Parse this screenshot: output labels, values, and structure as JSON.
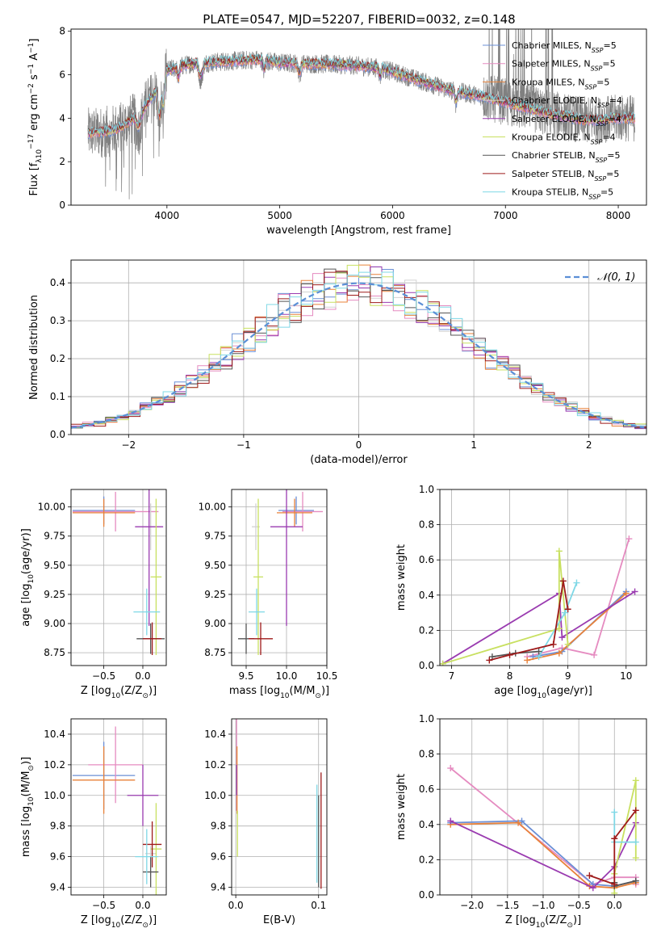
{
  "figure_title": "PLATE=0547, MJD=52207, FIBERID=0032, z=0.148",
  "colors": {
    "chabrier_miles": "#6b8fd6",
    "salpeter_miles": "#e58bc0",
    "kroupa_miles": "#e8823a",
    "chabrier_elodie": "#d2d2d2",
    "salpeter_elodie": "#9a3bb0",
    "kroupa_elodie": "#c8e060",
    "chabrier_stelib": "#555555",
    "salpeter_stelib": "#9e1a1a",
    "kroupa_stelib": "#7fd8e6",
    "data": "#808080",
    "normal": "#5b8fd6"
  },
  "legend_series": [
    {
      "key": "chabrier_miles",
      "imf": "Chabrier",
      "lib": "MILES",
      "n": "5"
    },
    {
      "key": "salpeter_miles",
      "imf": "Salpeter",
      "lib": "MILES",
      "n": "5"
    },
    {
      "key": "kroupa_miles",
      "imf": "Kroupa",
      "lib": "MILES",
      "n": "5"
    },
    {
      "key": "chabrier_elodie",
      "imf": "Chabrier",
      "lib": "ELODIE",
      "n": "4"
    },
    {
      "key": "salpeter_elodie",
      "imf": "Salpeter",
      "lib": "ELODIE",
      "n": "4"
    },
    {
      "key": "kroupa_elodie",
      "imf": "Kroupa",
      "lib": "ELODIE",
      "n": "4"
    },
    {
      "key": "chabrier_stelib",
      "imf": "Chabrier",
      "lib": "STELIB",
      "n": "5"
    },
    {
      "key": "salpeter_stelib",
      "imf": "Salpeter",
      "lib": "STELIB",
      "n": "5"
    },
    {
      "key": "kroupa_stelib",
      "imf": "Kroupa",
      "lib": "STELIB",
      "n": "5"
    }
  ],
  "chart_data": [
    {
      "id": "spectrum",
      "type": "line",
      "xlabel": "wavelength [Angstrom, rest frame]",
      "ylabel_parts": [
        "Flux [f",
        "λ",
        "10",
        "−17",
        " erg cm",
        "−2",
        " s",
        "−1",
        " A",
        "−1",
        "]"
      ],
      "xlim": [
        3150,
        8250
      ],
      "ylim": [
        0,
        8.1
      ],
      "xticks": [
        4000,
        5000,
        6000,
        7000,
        8000
      ],
      "yticks": [
        0,
        2,
        4,
        6,
        8
      ],
      "grid": false,
      "legend_position": "right",
      "continuum": [
        [
          3300,
          3.3
        ],
        [
          3400,
          3.35
        ],
        [
          3500,
          3.4
        ],
        [
          3600,
          3.6
        ],
        [
          3700,
          4.0
        ],
        [
          3800,
          4.5
        ],
        [
          3900,
          5.2
        ],
        [
          4000,
          6.2
        ],
        [
          4200,
          6.5
        ],
        [
          4500,
          6.6
        ],
        [
          4800,
          6.7
        ],
        [
          5000,
          6.55
        ],
        [
          5300,
          6.5
        ],
        [
          5600,
          6.45
        ],
        [
          5900,
          6.3
        ],
        [
          6200,
          5.8
        ],
        [
          6500,
          5.3
        ],
        [
          6800,
          5.0
        ],
        [
          7100,
          4.6
        ],
        [
          7400,
          4.2
        ],
        [
          7700,
          3.9
        ],
        [
          8000,
          4.0
        ]
      ]
    },
    {
      "id": "residuals",
      "type": "line",
      "xlabel": "(data-model)/error",
      "ylabel": "Normed distribution",
      "xlim": [
        -2.5,
        2.5
      ],
      "ylim": [
        0,
        0.46
      ],
      "xticks": [
        -2,
        -1,
        0,
        1,
        2
      ],
      "yticks": [
        0.0,
        0.1,
        0.2,
        0.3,
        0.4
      ],
      "grid": true,
      "legend_position": "top-right",
      "normal_label_parts": [
        "𝒩",
        "(0, 1)"
      ],
      "bin_width": 0.1
    },
    {
      "id": "age_vs_Z",
      "type": "scatter",
      "xlabel_parts": [
        "Z [log",
        "10",
        "(Z/Z",
        "⊙",
        ")]"
      ],
      "ylabel_parts": [
        "age  [log",
        "10",
        "(age/yr)]"
      ],
      "xlim": [
        -0.92,
        0.3
      ],
      "ylim": [
        8.64,
        10.15
      ],
      "xticks": [
        -0.5,
        0.0
      ],
      "yticks": [
        8.75,
        9.0,
        9.25,
        9.5,
        9.75,
        10.0
      ],
      "grid": true,
      "errorbars": [
        {
          "s": "chabrier_miles",
          "x": -0.5,
          "xe": 0.4,
          "y": 9.97,
          "ye": 0.12
        },
        {
          "s": "salpeter_miles",
          "x": -0.35,
          "xe": 0.55,
          "y": 9.96,
          "ye": 0.17
        },
        {
          "s": "kroupa_miles",
          "x": -0.5,
          "xe": 0.4,
          "y": 9.95,
          "ye": 0.12
        },
        {
          "s": "chabrier_elodie",
          "x": 0.1,
          "xe": 0.07,
          "y": 9.83,
          "ye": 0.2
        },
        {
          "s": "salpeter_elodie",
          "x": 0.08,
          "xe": 0.18,
          "y": 9.83,
          "ye": 0.85
        },
        {
          "s": "kroupa_elodie",
          "x": 0.17,
          "xe": 0.07,
          "y": 9.4,
          "ye": 0.67
        },
        {
          "s": "chabrier_stelib",
          "x": 0.1,
          "xe": 0.18,
          "y": 8.87,
          "ye": 0.13
        },
        {
          "s": "salpeter_stelib",
          "x": 0.12,
          "xe": 0.12,
          "y": 8.87,
          "ye": 0.14
        },
        {
          "s": "kroupa_stelib",
          "x": 0.05,
          "xe": 0.17,
          "y": 9.1,
          "ye": 0.2
        }
      ]
    },
    {
      "id": "age_vs_mass",
      "type": "scatter",
      "xlabel_parts": [
        "mass [log",
        "10",
        "(M/M",
        "⊙",
        ")]"
      ],
      "ylabel": "",
      "xlim": [
        9.32,
        10.5
      ],
      "ylim": [
        8.64,
        10.15
      ],
      "xticks": [
        9.5,
        10.0,
        10.5
      ],
      "yticks": [
        8.75,
        9.0,
        9.25,
        9.5,
        9.75,
        10.0
      ],
      "grid": true,
      "errorbars": [
        {
          "s": "chabrier_miles",
          "x": 10.12,
          "xe": 0.22,
          "y": 9.97,
          "ye": 0.12
        },
        {
          "s": "salpeter_miles",
          "x": 10.2,
          "xe": 0.25,
          "y": 9.96,
          "ye": 0.17
        },
        {
          "s": "kroupa_miles",
          "x": 10.1,
          "xe": 0.22,
          "y": 9.95,
          "ye": 0.12
        },
        {
          "s": "chabrier_elodie",
          "x": 9.62,
          "xe": 0.05,
          "y": 9.83,
          "ye": 0.2
        },
        {
          "s": "salpeter_elodie",
          "x": 10.0,
          "xe": 0.2,
          "y": 9.83,
          "ye": 0.85
        },
        {
          "s": "kroupa_elodie",
          "x": 9.65,
          "xe": 0.06,
          "y": 9.4,
          "ye": 0.67
        },
        {
          "s": "chabrier_stelib",
          "x": 9.5,
          "xe": 0.1,
          "y": 8.87,
          "ye": 0.13
        },
        {
          "s": "salpeter_stelib",
          "x": 9.68,
          "xe": 0.15,
          "y": 8.87,
          "ye": 0.14
        },
        {
          "s": "kroupa_stelib",
          "x": 9.63,
          "xe": 0.1,
          "y": 9.1,
          "ye": 0.2
        }
      ]
    },
    {
      "id": "weight_vs_age",
      "type": "line",
      "xlabel_parts": [
        "age  [log",
        "10",
        "(age/yr)]"
      ],
      "ylabel": "mass weight",
      "xlim": [
        6.8,
        10.35
      ],
      "ylim": [
        0,
        1.0
      ],
      "xticks": [
        7,
        8,
        9,
        10
      ],
      "yticks": [
        0.0,
        0.2,
        0.4,
        0.6,
        0.8,
        1.0
      ],
      "grid": true,
      "lines": [
        {
          "s": "salpeter_miles",
          "x": [
            8.3,
            8.9,
            9.45,
            10.05
          ],
          "y": [
            0.05,
            0.1,
            0.06,
            0.72
          ]
        },
        {
          "s": "chabrier_miles",
          "x": [
            8.4,
            8.9,
            10.0
          ],
          "y": [
            0.05,
            0.08,
            0.42
          ]
        },
        {
          "s": "kroupa_miles",
          "x": [
            8.3,
            8.85,
            10.0
          ],
          "y": [
            0.03,
            0.07,
            0.41
          ]
        },
        {
          "s": "salpeter_elodie",
          "x": [
            6.85,
            8.85,
            8.9,
            10.15
          ],
          "y": [
            0.01,
            0.41,
            0.16,
            0.42
          ]
        },
        {
          "s": "kroupa_elodie",
          "x": [
            6.85,
            8.85,
            8.85,
            9.0
          ],
          "y": [
            0.01,
            0.21,
            0.65,
            0.12
          ]
        },
        {
          "s": "kroupa_stelib",
          "x": [
            8.5,
            8.95,
            9.15
          ],
          "y": [
            0.05,
            0.3,
            0.47
          ]
        },
        {
          "s": "chabrier_stelib",
          "x": [
            7.7,
            8.1,
            8.5
          ],
          "y": [
            0.05,
            0.07,
            0.08
          ]
        },
        {
          "s": "salpeter_stelib",
          "x": [
            7.65,
            8.0,
            8.75,
            8.92,
            9.0
          ],
          "y": [
            0.03,
            0.06,
            0.12,
            0.48,
            0.32
          ]
        }
      ]
    },
    {
      "id": "mass_vs_Z",
      "type": "scatter",
      "xlabel_parts": [
        "Z [log",
        "10",
        "(Z/Z",
        "⊙",
        ")]"
      ],
      "ylabel_parts": [
        "mass [log",
        "10",
        "(M/M",
        "⊙",
        ")]"
      ],
      "xlim": [
        -0.92,
        0.3
      ],
      "ylim": [
        9.35,
        10.5
      ],
      "xticks": [
        -0.5,
        0.0
      ],
      "yticks": [
        9.4,
        9.6,
        9.8,
        10.0,
        10.2,
        10.4
      ],
      "grid": true,
      "errorbars": [
        {
          "s": "chabrier_miles",
          "x": -0.5,
          "xe": 0.4,
          "y": 10.13,
          "ye": 0.22
        },
        {
          "s": "salpeter_miles",
          "x": -0.35,
          "xe": 0.35,
          "y": 10.2,
          "ye": 0.25
        },
        {
          "s": "kroupa_miles",
          "x": -0.5,
          "xe": 0.4,
          "y": 10.1,
          "ye": 0.22
        },
        {
          "s": "chabrier_elodie",
          "x": 0.1,
          "xe": 0.07,
          "y": 9.62,
          "ye": 0.05
        },
        {
          "s": "salpeter_elodie",
          "x": 0.0,
          "xe": 0.2,
          "y": 10.0,
          "ye": 0.2
        },
        {
          "s": "kroupa_elodie",
          "x": 0.17,
          "xe": 0.07,
          "y": 9.65,
          "ye": 0.3
        },
        {
          "s": "chabrier_stelib",
          "x": 0.1,
          "xe": 0.1,
          "y": 9.5,
          "ye": 0.1
        },
        {
          "s": "salpeter_stelib",
          "x": 0.12,
          "xe": 0.12,
          "y": 9.68,
          "ye": 0.15
        },
        {
          "s": "kroupa_stelib",
          "x": 0.05,
          "xe": 0.15,
          "y": 9.6,
          "ye": 0.18
        }
      ]
    },
    {
      "id": "mass_vs_ebv",
      "type": "scatter",
      "xlabel": "E(B-V)",
      "ylabel": "",
      "xlim": [
        -0.005,
        0.11
      ],
      "ylim": [
        9.35,
        10.5
      ],
      "xticks": [
        0.0,
        0.1
      ],
      "yticks": [
        9.4,
        9.6,
        9.8,
        10.0,
        10.2,
        10.4
      ],
      "grid": true,
      "errorbars": [
        {
          "s": "salpeter_miles",
          "x": 0.001,
          "xe": 0,
          "y": 10.2,
          "ye": 0.3
        },
        {
          "s": "kroupa_miles",
          "x": 0.0015,
          "xe": 0,
          "y": 10.1,
          "ye": 0.22
        },
        {
          "s": "kroupa_elodie",
          "x": 0.002,
          "xe": 0,
          "y": 9.75,
          "ye": 0.15
        },
        {
          "s": "salpeter_elodie",
          "x": 0.001,
          "xe": 0,
          "y": 10.1,
          "ye": 0.1
        },
        {
          "s": "kroupa_stelib",
          "x": 0.098,
          "xe": 0,
          "y": 9.75,
          "ye": 0.32
        },
        {
          "s": "salpeter_stelib",
          "x": 0.103,
          "xe": 0,
          "y": 9.77,
          "ye": 0.38
        },
        {
          "s": "chabrier_stelib",
          "x": 0.1,
          "xe": 0,
          "y": 9.7,
          "ye": 0.3
        }
      ]
    },
    {
      "id": "weight_vs_Z",
      "type": "line",
      "xlabel_parts": [
        "Z [log",
        "10",
        "(Z/Z",
        "⊙",
        ")]"
      ],
      "ylabel": "mass weight",
      "xlim": [
        -2.45,
        0.45
      ],
      "ylim": [
        0,
        1.0
      ],
      "xticks": [
        -2.0,
        -1.5,
        -1.0,
        -0.5,
        0.0
      ],
      "yticks": [
        0.0,
        0.2,
        0.4,
        0.6,
        0.8,
        1.0
      ],
      "grid": true,
      "lines": [
        {
          "s": "salpeter_miles",
          "x": [
            -2.3,
            -0.3,
            0.0,
            0.3,
            0.3
          ],
          "y": [
            0.72,
            0.06,
            0.1,
            0.1,
            0.06
          ]
        },
        {
          "s": "chabrier_miles",
          "x": [
            -2.3,
            -1.3,
            -0.3,
            0.0,
            0.3
          ],
          "y": [
            0.41,
            0.42,
            0.06,
            0.05,
            0.08
          ]
        },
        {
          "s": "kroupa_miles",
          "x": [
            -2.3,
            -1.35,
            -0.35,
            0.0,
            0.3
          ],
          "y": [
            0.4,
            0.41,
            0.05,
            0.04,
            0.07
          ]
        },
        {
          "s": "salpeter_elodie",
          "x": [
            -2.3,
            -0.3,
            0.0,
            0.3
          ],
          "y": [
            0.42,
            0.04,
            0.16,
            0.41
          ]
        },
        {
          "s": "kroupa_elodie",
          "x": [
            0.0,
            0.0,
            0.3,
            0.3
          ],
          "y": [
            0.01,
            0.12,
            0.65,
            0.21
          ]
        },
        {
          "s": "kroupa_stelib",
          "x": [
            0.0,
            0.0,
            0.3
          ],
          "y": [
            0.47,
            0.3,
            0.3
          ]
        },
        {
          "s": "chabrier_stelib",
          "x": [
            0.0,
            0.0,
            0.3
          ],
          "y": [
            0.07,
            0.05,
            0.08
          ]
        },
        {
          "s": "salpeter_stelib",
          "x": [
            -0.35,
            0.0,
            0.0,
            0.3
          ],
          "y": [
            0.11,
            0.06,
            0.32,
            0.48
          ]
        }
      ]
    }
  ]
}
